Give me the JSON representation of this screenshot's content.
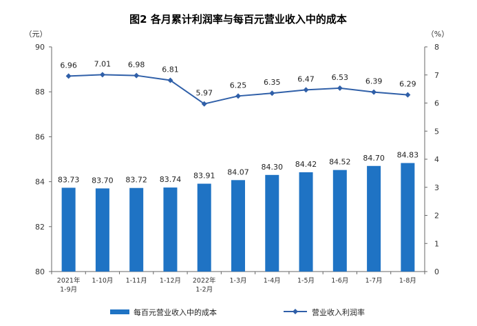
{
  "chart_data": {
    "type": "bar+line",
    "title": "图2  各月累计利润率与每百元营业收入中的成本",
    "categories": [
      [
        "2021年",
        "1-9月"
      ],
      [
        "1-10月"
      ],
      [
        "1-11月"
      ],
      [
        "1-12月"
      ],
      [
        "2022年",
        "1-2月"
      ],
      [
        "1-3月"
      ],
      [
        "1-4月"
      ],
      [
        "1-5月"
      ],
      [
        "1-6月"
      ],
      [
        "1-7月"
      ],
      [
        "1-8月"
      ]
    ],
    "left_axis": {
      "unit": "（元）",
      "min": 80,
      "max": 90,
      "ticks": [
        80,
        82,
        84,
        86,
        88,
        90
      ]
    },
    "right_axis": {
      "unit": "（%）",
      "min": 0,
      "max": 8,
      "ticks": [
        0,
        1,
        2,
        3,
        4,
        5,
        6,
        7,
        8
      ]
    },
    "bar_series": {
      "name": "每百元营业收入中的成本",
      "axis": "left",
      "color": "#1f73c4",
      "values": [
        83.73,
        83.7,
        83.72,
        83.74,
        83.91,
        84.07,
        84.3,
        84.42,
        84.52,
        84.7,
        84.83
      ],
      "labels": [
        "83.73",
        "83.70",
        "83.72",
        "83.74",
        "83.91",
        "84.07",
        "84.30",
        "84.42",
        "84.52",
        "84.70",
        "84.83"
      ]
    },
    "line_series": {
      "name": "营业收入利润率",
      "axis": "right",
      "color": "#2f5fa8",
      "values": [
        6.96,
        7.01,
        6.98,
        6.81,
        5.97,
        6.25,
        6.35,
        6.47,
        6.53,
        6.39,
        6.29
      ],
      "labels": [
        "6.96",
        "7.01",
        "6.98",
        "6.81",
        "5.97",
        "6.25",
        "6.35",
        "6.47",
        "6.53",
        "6.39",
        "6.29"
      ]
    },
    "grid": false,
    "legend_position": "bottom"
  }
}
